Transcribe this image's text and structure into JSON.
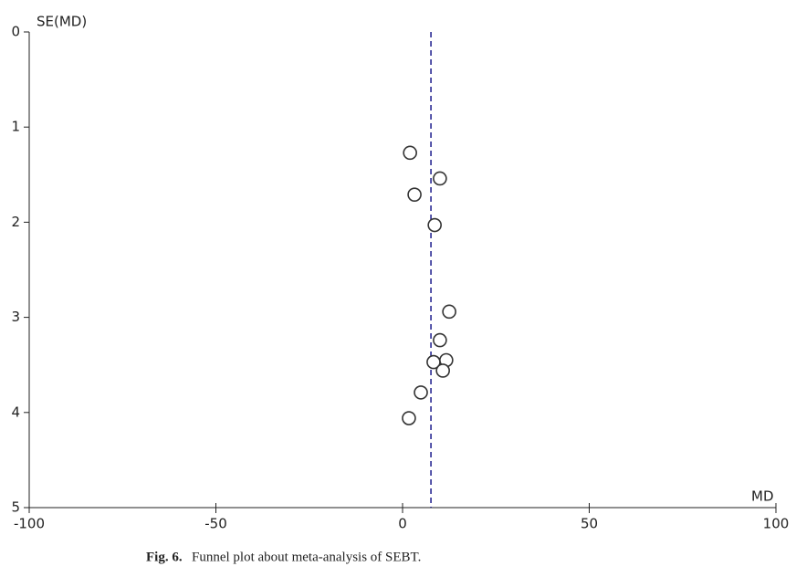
{
  "chart_data": {
    "type": "scatter",
    "y_label": "SE(MD)",
    "x_label": "MD",
    "caption_label": "Fig. 6.",
    "caption": "Funnel plot about meta-analysis of SEBT.",
    "x": [
      2.0,
      10.0,
      3.2,
      8.6,
      12.5,
      10.0,
      11.7,
      8.3,
      10.8,
      4.9,
      1.7
    ],
    "values": [
      1.27,
      1.54,
      1.71,
      2.03,
      2.94,
      3.24,
      3.45,
      3.47,
      3.56,
      3.79,
      4.06
    ],
    "reference_x": 7.6,
    "reference_color": "#1a1a8c",
    "color": "#333333",
    "xlim": [
      -100,
      100
    ],
    "xticks": [
      -100,
      -50,
      0,
      50,
      100
    ],
    "ylim": [
      0,
      5
    ],
    "yticks": [
      0,
      1,
      2,
      3,
      4,
      5
    ],
    "y_inverted": true
  }
}
